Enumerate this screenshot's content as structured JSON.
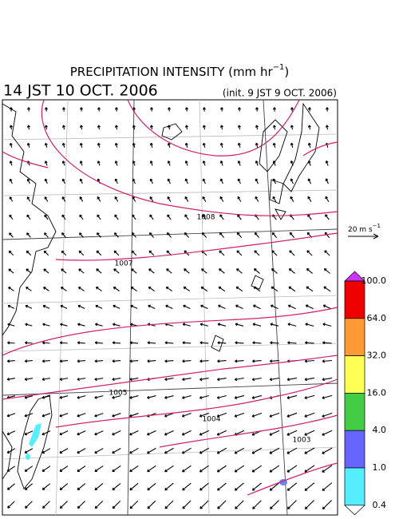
{
  "header": {
    "title": {
      "text": "PRECIPITATION INTENSITY (mm hr",
      "superscript": "−1",
      "close": ")"
    },
    "valid_time": "14 JST 10 OCT. 2006",
    "init_time": "(init. 9 JST 9 OCT. 2006)"
  },
  "isobars": [
    {
      "label": "1008"
    },
    {
      "label": "1007"
    },
    {
      "label": "1005"
    },
    {
      "label": "1004"
    },
    {
      "label": "1003"
    }
  ],
  "wind_reference": {
    "text": "20 m s",
    "superscript": "−1"
  },
  "colorbar": {
    "labels": [
      "100.0",
      "64.0",
      "32.0",
      "16.0",
      "4.0",
      "1.0",
      "0.4"
    ],
    "colors": [
      "#ee0000",
      "#ff9933",
      "#ffff55",
      "#44cc44",
      "#6666ff",
      "#55eeff"
    ],
    "over_color": "#cc33ff",
    "under_color": "#ffffff"
  }
}
